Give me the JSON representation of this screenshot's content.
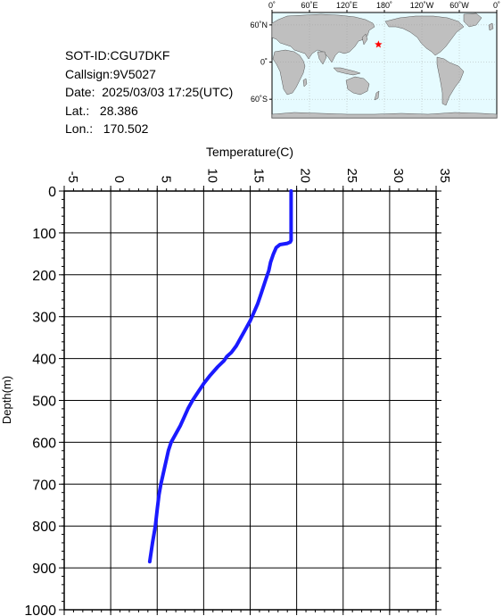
{
  "info": {
    "sot_id": "SOT-ID:CGU7DKF",
    "callsign": "Callsign:9V5027",
    "date": "Date:  2025/03/03 17:25(UTC)",
    "lat": "Lat.:   28.386",
    "lon": "Lon.:   170.502"
  },
  "map": {
    "top_labels": [
      "0˚",
      "60˚E",
      "120˚E",
      "180˚",
      "120˚W",
      "60˚W",
      "0˚"
    ],
    "side_labels": [
      "60˚N",
      "0˚",
      "60˚S"
    ],
    "ocean_color": "#e6fbff",
    "land_color": "#bfbfbf",
    "marker": {
      "lon": 170.502,
      "lat": 28.386,
      "symbol": "star",
      "color": "#ff0000"
    }
  },
  "chart_data": {
    "type": "line",
    "xlabel": "Temperature(C)",
    "ylabel": "Depth(m)",
    "xlim": [
      -5,
      35
    ],
    "ylim": [
      1000,
      0
    ],
    "x_ticks": [
      "-5",
      "0",
      "5",
      "10",
      "15",
      "20",
      "25",
      "30",
      "35"
    ],
    "y_ticks": [
      "0",
      "100",
      "200",
      "300",
      "400",
      "500",
      "600",
      "700",
      "800",
      "900",
      "1000"
    ],
    "grid": true,
    "line_color": "#1a1aff",
    "series": [
      {
        "x": [
          19.4,
          19.4,
          19.4,
          19.4,
          19.4,
          19.4,
          19.4,
          19.3,
          19.0,
          18.2,
          17.8,
          17.5,
          17.2,
          17.0,
          16.7,
          16.4,
          16.1,
          15.8,
          15.4,
          15.0,
          14.5,
          14.0,
          13.5,
          13.0,
          12.5,
          12.2,
          11.5,
          10.7,
          10.0,
          9.4,
          8.8,
          8.3,
          7.9,
          7.5,
          7.0,
          6.5,
          6.2,
          6.0,
          5.8,
          5.6,
          5.4,
          5.2,
          5.0,
          4.8,
          4.5,
          4.2
        ],
        "y": [
          0,
          20,
          40,
          60,
          80,
          100,
          118,
          122,
          125,
          128,
          135,
          150,
          170,
          190,
          210,
          230,
          250,
          270,
          290,
          310,
          330,
          350,
          370,
          385,
          395,
          405,
          420,
          440,
          460,
          480,
          500,
          520,
          540,
          560,
          580,
          600,
          620,
          640,
          660,
          680,
          700,
          725,
          760,
          800,
          840,
          885
        ]
      }
    ]
  }
}
